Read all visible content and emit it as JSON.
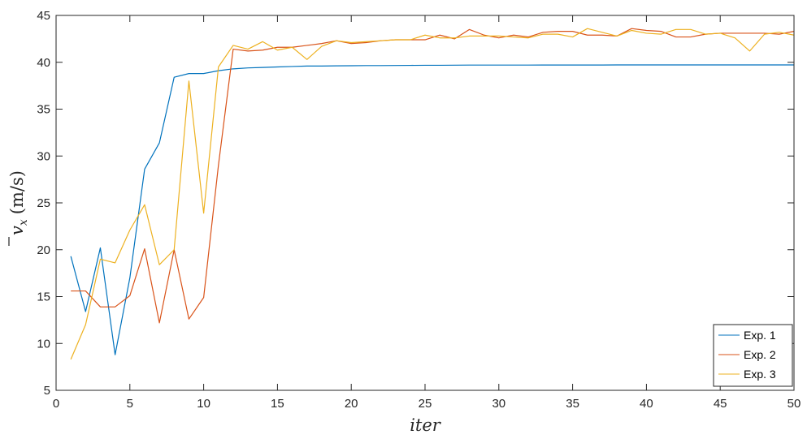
{
  "chart_data": {
    "type": "line",
    "xlabel": "iter",
    "ylabel_main": "v",
    "ylabel_sub": "x",
    "ylabel_units": "(m/s)",
    "xlim": [
      0,
      50
    ],
    "ylim": [
      5,
      45
    ],
    "xticks": [
      0,
      5,
      10,
      15,
      20,
      25,
      30,
      35,
      40,
      45,
      50
    ],
    "yticks": [
      5,
      10,
      15,
      20,
      25,
      30,
      35,
      40,
      45
    ],
    "grid": false,
    "legend_position": "bottom-right",
    "x": [
      1,
      2,
      3,
      4,
      5,
      6,
      7,
      8,
      9,
      10,
      11,
      12,
      13,
      14,
      15,
      16,
      17,
      18,
      19,
      20,
      21,
      22,
      23,
      24,
      25,
      26,
      27,
      28,
      29,
      30,
      31,
      32,
      33,
      34,
      35,
      36,
      37,
      38,
      39,
      40,
      41,
      42,
      43,
      44,
      45,
      46,
      47,
      48,
      49,
      50
    ],
    "series": [
      {
        "name": "Exp. 1",
        "color": "#0072BD",
        "values": [
          19.3,
          13.4,
          20.2,
          8.8,
          17.0,
          28.6,
          31.4,
          38.4,
          38.8,
          38.8,
          39.1,
          39.3,
          39.4,
          39.45,
          39.5,
          39.55,
          39.6,
          39.6,
          39.62,
          39.63,
          39.65,
          39.65,
          39.66,
          39.67,
          39.68,
          39.68,
          39.69,
          39.7,
          39.7,
          39.7,
          39.7,
          39.7,
          39.71,
          39.71,
          39.71,
          39.71,
          39.71,
          39.72,
          39.72,
          39.72,
          39.72,
          39.72,
          39.72,
          39.72,
          39.72,
          39.72,
          39.72,
          39.72,
          39.72,
          39.72
        ]
      },
      {
        "name": "Exp. 2",
        "color": "#D95319",
        "values": [
          15.6,
          15.6,
          13.9,
          13.9,
          15.1,
          20.1,
          12.2,
          20.0,
          12.6,
          14.9,
          29.0,
          41.4,
          41.2,
          41.3,
          41.6,
          41.6,
          41.8,
          42.0,
          42.3,
          42.0,
          42.1,
          42.3,
          42.4,
          42.4,
          42.4,
          42.9,
          42.5,
          43.5,
          42.9,
          42.6,
          42.9,
          42.7,
          43.2,
          43.3,
          43.3,
          42.9,
          42.9,
          42.8,
          43.6,
          43.4,
          43.3,
          42.7,
          42.7,
          43.0,
          43.1,
          43.1,
          43.1,
          43.1,
          43.0,
          43.3
        ]
      },
      {
        "name": "Exp. 3",
        "color": "#EDB120",
        "values": [
          8.3,
          12.0,
          19.0,
          18.6,
          22.1,
          24.8,
          18.4,
          20.0,
          38.0,
          23.9,
          39.5,
          41.8,
          41.4,
          42.2,
          41.3,
          41.6,
          40.3,
          41.7,
          42.3,
          42.1,
          42.2,
          42.3,
          42.4,
          42.4,
          42.9,
          42.6,
          42.6,
          42.8,
          42.8,
          42.8,
          42.7,
          42.6,
          43.0,
          43.0,
          42.7,
          43.6,
          43.2,
          42.8,
          43.4,
          43.1,
          43.0,
          43.5,
          43.5,
          43.0,
          43.1,
          42.6,
          41.2,
          43.0,
          43.2,
          42.9
        ]
      }
    ]
  }
}
